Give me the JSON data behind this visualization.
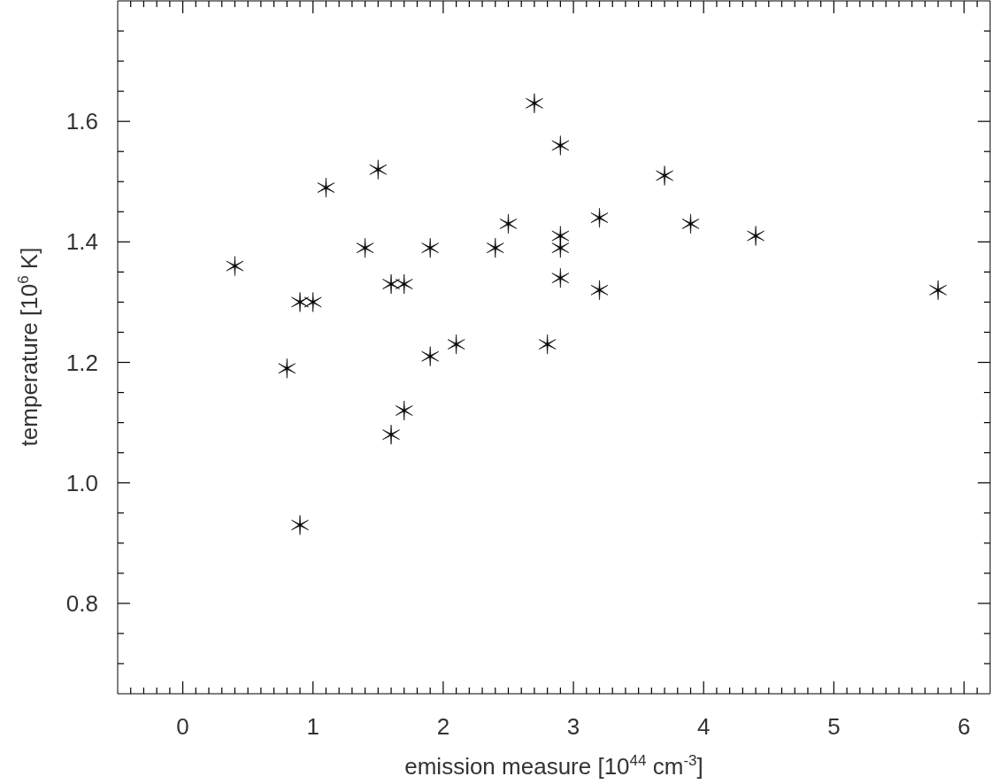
{
  "chart_data": {
    "type": "scatter",
    "xlabel": "emission measure [10$^{44}$ cm$^{-3}$]",
    "ylabel": "temperature [10$^{6}$ K]",
    "marker": "cross",
    "x": [
      0.4,
      0.8,
      0.9,
      1.0,
      0.9,
      1.1,
      1.4,
      1.5,
      1.6,
      1.7,
      1.6,
      1.7,
      1.9,
      1.9,
      2.1,
      2.4,
      2.5,
      2.7,
      2.8,
      2.9,
      2.9,
      2.9,
      2.9,
      3.2,
      3.2,
      3.7,
      3.9,
      4.4,
      5.8
    ],
    "values": [
      1.36,
      1.19,
      1.3,
      1.3,
      0.93,
      1.49,
      1.39,
      1.52,
      1.33,
      1.33,
      1.08,
      1.12,
      1.39,
      1.21,
      1.23,
      1.39,
      1.43,
      1.63,
      1.23,
      1.56,
      1.41,
      1.39,
      1.34,
      1.44,
      1.32,
      1.51,
      1.43,
      1.41,
      1.32
    ],
    "color": "#000000",
    "xlim": [
      -0.5,
      6.2
    ],
    "ylim": [
      0.65,
      1.8
    ],
    "xticks": [
      {
        "value": -0.4,
        "label": null
      },
      {
        "value": -0.3,
        "label": null
      },
      {
        "value": -0.2,
        "label": null
      },
      {
        "value": -0.1,
        "label": null
      },
      0,
      {
        "value": 0.1,
        "label": null
      },
      {
        "value": 0.2,
        "label": null
      },
      {
        "value": 0.3,
        "label": null
      },
      {
        "value": 0.4,
        "label": null
      },
      {
        "value": 0.5,
        "label": null
      },
      {
        "value": 0.6,
        "label": null
      },
      {
        "value": 0.7,
        "label": null
      },
      {
        "value": 0.8,
        "label": null
      },
      {
        "value": 0.9,
        "label": null
      },
      1,
      {
        "value": 1.1,
        "label": null
      },
      {
        "value": 1.2,
        "label": null
      },
      {
        "value": 1.3,
        "label": null
      },
      {
        "value": 1.4,
        "label": null
      },
      {
        "value": 1.5,
        "label": null
      },
      {
        "value": 1.6,
        "label": null
      },
      {
        "value": 1.7,
        "label": null
      },
      {
        "value": 1.8,
        "label": null
      },
      {
        "value": 1.9,
        "label": null
      },
      2,
      {
        "value": 2.1,
        "label": null
      },
      {
        "value": 2.2,
        "label": null
      },
      {
        "value": 2.3,
        "label": null
      },
      {
        "value": 2.4,
        "label": null
      },
      {
        "value": 2.5,
        "label": null
      },
      {
        "value": 2.6,
        "label": null
      },
      {
        "value": 2.7,
        "label": null
      },
      {
        "value": 2.8,
        "label": null
      },
      {
        "value": 2.9,
        "label": null
      },
      3,
      {
        "value": 3.1,
        "label": null
      },
      {
        "value": 3.2,
        "label": null
      },
      {
        "value": 3.3,
        "label": null
      },
      {
        "value": 3.4,
        "label": null
      },
      {
        "value": 3.5,
        "label": null
      },
      {
        "value": 3.6,
        "label": null
      },
      {
        "value": 3.7,
        "label": null
      },
      {
        "value": 3.8,
        "label": null
      },
      {
        "value": 3.9,
        "label": null
      },
      4,
      {
        "value": 4.1,
        "label": null
      },
      {
        "value": 4.2,
        "label": null
      },
      {
        "value": 4.3,
        "label": null
      },
      {
        "value": 4.4,
        "label": null
      },
      {
        "value": 4.5,
        "label": null
      },
      {
        "value": 4.6,
        "label": null
      },
      {
        "value": 4.7,
        "label": null
      },
      {
        "value": 4.8,
        "label": null
      },
      {
        "value": 4.9,
        "label": null
      },
      5,
      {
        "value": 5.1,
        "label": null
      },
      {
        "value": 5.2,
        "label": null
      },
      {
        "value": 5.3,
        "label": null
      },
      {
        "value": 5.4,
        "label": null
      },
      {
        "value": 5.5,
        "label": null
      },
      {
        "value": 5.6,
        "label": null
      },
      {
        "value": 5.7,
        "label": null
      },
      {
        "value": 5.8,
        "label": null
      },
      {
        "value": 5.9,
        "label": null
      },
      6,
      {
        "value": 6.1,
        "label": null
      }
    ],
    "yticks": [
      {
        "value": 0.7,
        "label": null
      },
      {
        "value": 0.75,
        "label": null
      },
      0.8,
      {
        "value": 0.85,
        "label": null
      },
      {
        "value": 0.9,
        "label": null
      },
      {
        "value": 0.95,
        "label": null
      },
      {
        "value": 1,
        "label": "1.0"
      },
      {
        "value": 1.05,
        "label": null
      },
      {
        "value": 1.1,
        "label": null
      },
      {
        "value": 1.15,
        "label": null
      },
      1.2,
      {
        "value": 1.25,
        "label": null
      },
      {
        "value": 1.3,
        "label": null
      },
      {
        "value": 1.35,
        "label": null
      },
      1.4,
      {
        "value": 1.45,
        "label": null
      },
      {
        "value": 1.5,
        "label": null
      },
      {
        "value": 1.55,
        "label": null
      },
      1.6,
      {
        "value": 1.65,
        "label": null
      },
      {
        "value": 1.7,
        "label": null
      },
      {
        "value": 1.75,
        "label": null
      }
    ]
  }
}
